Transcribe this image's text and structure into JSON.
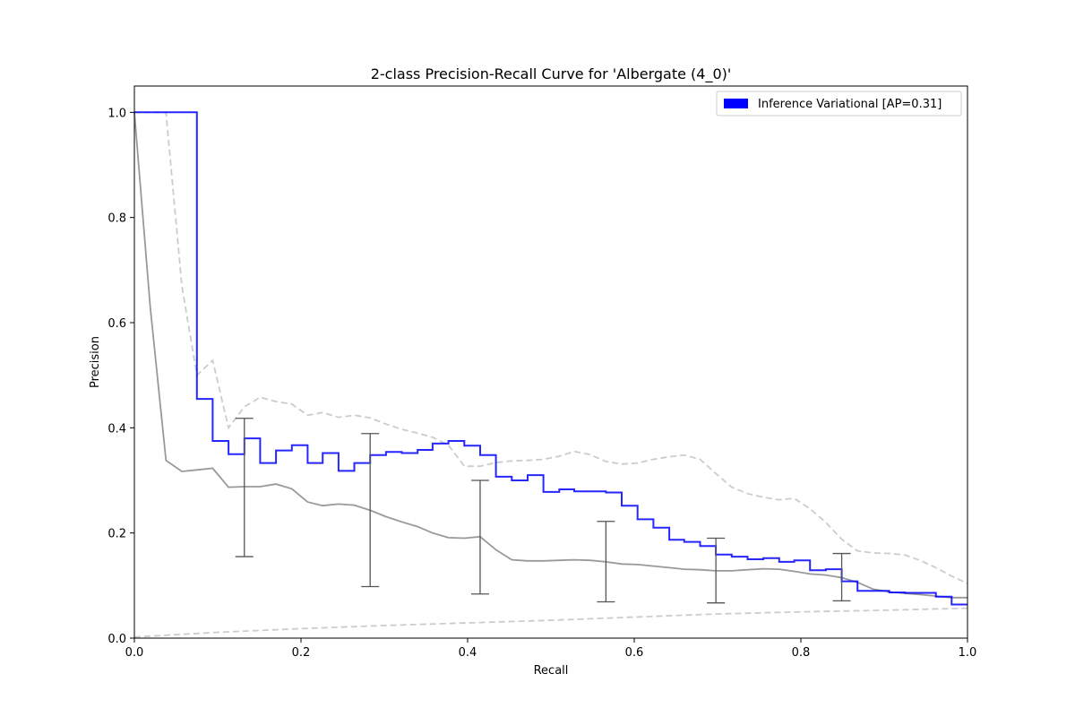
{
  "chart_data": {
    "type": "line",
    "title": "2-class Precision-Recall Curve for 'Albergate (4_0)'",
    "xlabel": "Recall",
    "ylabel": "Precision",
    "xlim": [
      0.0,
      1.0
    ],
    "ylim": [
      0.0,
      1.05
    ],
    "x_ticks": [
      "0.0",
      "0.2",
      "0.4",
      "0.6",
      "0.8",
      "1.0"
    ],
    "y_ticks": [
      "0.0",
      "0.2",
      "0.4",
      "0.6",
      "0.8",
      "1.0"
    ],
    "grid": false,
    "legend_position": "top-right",
    "legend": [
      {
        "label": "Inference Variational [AP=0.31]",
        "color": "#0000ff"
      }
    ],
    "series": [
      {
        "name": "Inference Variational [AP=0.31]",
        "style": "step",
        "color": "#0000ff",
        "x": [
          0.0,
          0.075,
          0.075,
          0.094,
          0.094,
          0.113,
          0.113,
          0.132,
          0.132,
          0.151,
          0.151,
          0.17,
          0.17,
          0.189,
          0.189,
          0.208,
          0.208,
          0.226,
          0.226,
          0.245,
          0.245,
          0.264,
          0.264,
          0.283,
          0.283,
          0.302,
          0.302,
          0.321,
          0.321,
          0.34,
          0.34,
          0.358,
          0.358,
          0.377,
          0.377,
          0.396,
          0.396,
          0.415,
          0.415,
          0.434,
          0.434,
          0.453,
          0.453,
          0.472,
          0.472,
          0.491,
          0.491,
          0.51,
          0.51,
          0.528,
          0.528,
          0.547,
          0.547,
          0.566,
          0.566,
          0.585,
          0.585,
          0.604,
          0.604,
          0.623,
          0.623,
          0.642,
          0.642,
          0.66,
          0.66,
          0.679,
          0.679,
          0.698,
          0.698,
          0.717,
          0.717,
          0.736,
          0.736,
          0.755,
          0.755,
          0.774,
          0.774,
          0.792,
          0.792,
          0.811,
          0.811,
          0.83,
          0.83,
          0.849,
          0.849,
          0.868,
          0.868,
          0.887,
          0.887,
          0.906,
          0.906,
          0.925,
          0.925,
          0.943,
          0.943,
          0.962,
          0.962,
          0.981,
          0.981,
          1.0
        ],
        "y": [
          1.0,
          1.0,
          0.455,
          0.455,
          0.375,
          0.375,
          0.35,
          0.35,
          0.38,
          0.38,
          0.333,
          0.333,
          0.357,
          0.357,
          0.367,
          0.367,
          0.333,
          0.333,
          0.352,
          0.352,
          0.318,
          0.318,
          0.333,
          0.333,
          0.348,
          0.348,
          0.354,
          0.354,
          0.352,
          0.352,
          0.358,
          0.358,
          0.37,
          0.37,
          0.375,
          0.375,
          0.366,
          0.366,
          0.348,
          0.348,
          0.307,
          0.307,
          0.3,
          0.3,
          0.31,
          0.31,
          0.278,
          0.278,
          0.283,
          0.283,
          0.279,
          0.279,
          0.279,
          0.279,
          0.277,
          0.277,
          0.252,
          0.252,
          0.226,
          0.226,
          0.21,
          0.21,
          0.187,
          0.187,
          0.183,
          0.183,
          0.175,
          0.175,
          0.159,
          0.159,
          0.155,
          0.155,
          0.15,
          0.15,
          0.152,
          0.152,
          0.145,
          0.145,
          0.148,
          0.148,
          0.129,
          0.129,
          0.131,
          0.131,
          0.108,
          0.108,
          0.09,
          0.09,
          0.09,
          0.09,
          0.087,
          0.087,
          0.086,
          0.086,
          0.086,
          0.086,
          0.079,
          0.079,
          0.064,
          0.064
        ]
      },
      {
        "name": "",
        "style": "solid",
        "color": "#999999",
        "x": [
          0.0,
          0.019,
          0.038,
          0.057,
          0.075,
          0.094,
          0.113,
          0.132,
          0.151,
          0.17,
          0.189,
          0.208,
          0.226,
          0.245,
          0.264,
          0.283,
          0.302,
          0.321,
          0.34,
          0.358,
          0.377,
          0.396,
          0.415,
          0.434,
          0.453,
          0.472,
          0.491,
          0.51,
          0.528,
          0.547,
          0.566,
          0.585,
          0.604,
          0.623,
          0.642,
          0.66,
          0.679,
          0.698,
          0.717,
          0.736,
          0.755,
          0.774,
          0.792,
          0.811,
          0.83,
          0.849,
          0.868,
          0.887,
          0.906,
          0.925,
          0.943,
          0.962,
          0.981,
          1.0
        ],
        "y": [
          1.0,
          0.63,
          0.338,
          0.317,
          0.32,
          0.323,
          0.287,
          0.288,
          0.288,
          0.293,
          0.284,
          0.259,
          0.252,
          0.255,
          0.253,
          0.243,
          0.231,
          0.221,
          0.212,
          0.2,
          0.191,
          0.19,
          0.193,
          0.168,
          0.149,
          0.147,
          0.147,
          0.148,
          0.149,
          0.148,
          0.145,
          0.141,
          0.14,
          0.137,
          0.134,
          0.131,
          0.13,
          0.128,
          0.128,
          0.13,
          0.132,
          0.131,
          0.127,
          0.122,
          0.12,
          0.115,
          0.106,
          0.093,
          0.088,
          0.085,
          0.083,
          0.08,
          0.077,
          0.077
        ]
      },
      {
        "name": "",
        "style": "dashed",
        "color": "#cccccc",
        "x": [
          0.0,
          0.038,
          0.057,
          0.075,
          0.094,
          0.113,
          0.132,
          0.151,
          0.17,
          0.189,
          0.208,
          0.226,
          0.245,
          0.264,
          0.283,
          0.302,
          0.321,
          0.34,
          0.358,
          0.377,
          0.396,
          0.415,
          0.434,
          0.453,
          0.472,
          0.491,
          0.51,
          0.528,
          0.547,
          0.566,
          0.585,
          0.604,
          0.623,
          0.642,
          0.66,
          0.679,
          0.698,
          0.717,
          0.736,
          0.755,
          0.774,
          0.792,
          0.811,
          0.83,
          0.849,
          0.868,
          0.887,
          0.906,
          0.925,
          0.943,
          0.962,
          0.981,
          1.0
        ],
        "y": [
          1.0,
          1.0,
          0.67,
          0.5,
          0.528,
          0.4,
          0.44,
          0.458,
          0.45,
          0.445,
          0.424,
          0.429,
          0.42,
          0.424,
          0.419,
          0.407,
          0.397,
          0.39,
          0.382,
          0.367,
          0.327,
          0.327,
          0.334,
          0.337,
          0.338,
          0.34,
          0.346,
          0.355,
          0.349,
          0.336,
          0.331,
          0.333,
          0.34,
          0.345,
          0.348,
          0.34,
          0.313,
          0.287,
          0.275,
          0.268,
          0.263,
          0.266,
          0.246,
          0.22,
          0.188,
          0.166,
          0.162,
          0.161,
          0.158,
          0.148,
          0.134,
          0.118,
          0.104
        ]
      },
      {
        "name": "",
        "style": "dashed",
        "color": "#cccccc",
        "x": [
          0.0,
          0.1,
          0.2,
          0.3,
          0.4,
          0.5,
          0.6,
          0.7,
          0.8,
          0.9,
          1.0
        ],
        "y": [
          0.002,
          0.011,
          0.018,
          0.024,
          0.029,
          0.034,
          0.04,
          0.046,
          0.05,
          0.053,
          0.057
        ]
      }
    ],
    "error_bars": [
      {
        "x": 0.132,
        "low": 0.155,
        "high": 0.418
      },
      {
        "x": 0.283,
        "low": 0.098,
        "high": 0.389
      },
      {
        "x": 0.415,
        "low": 0.084,
        "high": 0.3
      },
      {
        "x": 0.566,
        "low": 0.069,
        "high": 0.222
      },
      {
        "x": 0.698,
        "low": 0.067,
        "high": 0.19
      },
      {
        "x": 0.849,
        "low": 0.071,
        "high": 0.161
      }
    ]
  }
}
